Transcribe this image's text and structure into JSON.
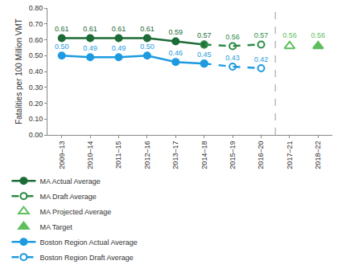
{
  "chart_data": {
    "type": "line",
    "y_label": "Fatalities per 100 Million VMT",
    "categories": [
      "2009–13",
      "2010–14",
      "2011–15",
      "2012–16",
      "2013–17",
      "2014–18",
      "2015–19",
      "2016–20",
      "2017–21",
      "2018–22"
    ],
    "ylim": [
      0,
      0.8
    ],
    "yticks": [
      {
        "value": 0,
        "label": "0.00"
      },
      {
        "value": 0.1,
        "label": "0.10"
      },
      {
        "value": 0.2,
        "label": "0.20"
      },
      {
        "value": 0.3,
        "label": "0.30"
      },
      {
        "value": 0.4,
        "label": "0.40"
      },
      {
        "value": 0.5,
        "label": "0.50"
      },
      {
        "value": 0.6,
        "label": "0.60"
      },
      {
        "value": 0.7,
        "label": "0.70"
      },
      {
        "value": 0.8,
        "label": "0.80"
      }
    ],
    "grid": false,
    "legend": "bottom",
    "data_labels": true,
    "series": [
      {
        "name": "MA Actual Average",
        "type": "line",
        "color": "#1d6b36",
        "marker": "circle",
        "line_style": "solid",
        "values": [
          0.61,
          0.61,
          0.61,
          0.61,
          0.59,
          0.57,
          null,
          null,
          null,
          null
        ],
        "value_labels": [
          "0.61",
          "0.61",
          "0.61",
          "0.61",
          "0.59",
          "0.57",
          null,
          null,
          null,
          null
        ]
      },
      {
        "name": "MA Draft Average",
        "type": "line",
        "color": "#2e8b47",
        "marker": "circle-open",
        "line_style": "dashed",
        "values": [
          null,
          null,
          null,
          null,
          null,
          0.57,
          0.56,
          0.57,
          null,
          null
        ],
        "value_labels": [
          null,
          null,
          null,
          null,
          null,
          null,
          "0.56",
          "0.57",
          null,
          null
        ]
      },
      {
        "name": "MA Projected Average",
        "type": "scatter",
        "color": "#5fbf5f",
        "marker": "triangle-up-open",
        "values": [
          null,
          null,
          null,
          null,
          null,
          null,
          null,
          null,
          0.56,
          null
        ],
        "value_labels": [
          null,
          null,
          null,
          null,
          null,
          null,
          null,
          null,
          "0.56",
          null
        ]
      },
      {
        "name": "MA Target",
        "type": "scatter",
        "color": "#5fbf5f",
        "marker": "triangle-up",
        "values": [
          null,
          null,
          null,
          null,
          null,
          null,
          null,
          null,
          null,
          0.56
        ],
        "value_labels": [
          null,
          null,
          null,
          null,
          null,
          null,
          null,
          null,
          null,
          "0.56"
        ]
      },
      {
        "name": "Boston Region Actual Average",
        "type": "line",
        "color": "#1e9be0",
        "marker": "circle",
        "line_style": "solid",
        "values": [
          0.5,
          0.49,
          0.49,
          0.5,
          0.46,
          0.45,
          null,
          null,
          null,
          null
        ],
        "value_labels": [
          "0.50",
          "0.49",
          "0.49",
          "0.50",
          "0.46",
          "0.45",
          null,
          null,
          null,
          null
        ]
      },
      {
        "name": "Boston Region Draft Average",
        "type": "line",
        "color": "#1e9be0",
        "marker": "circle-open",
        "line_style": "dashed",
        "values": [
          null,
          null,
          null,
          null,
          null,
          0.45,
          0.43,
          0.42,
          null,
          null
        ],
        "value_labels": [
          null,
          null,
          null,
          null,
          null,
          null,
          "0.43",
          "0.42",
          null,
          null
        ]
      }
    ]
  }
}
